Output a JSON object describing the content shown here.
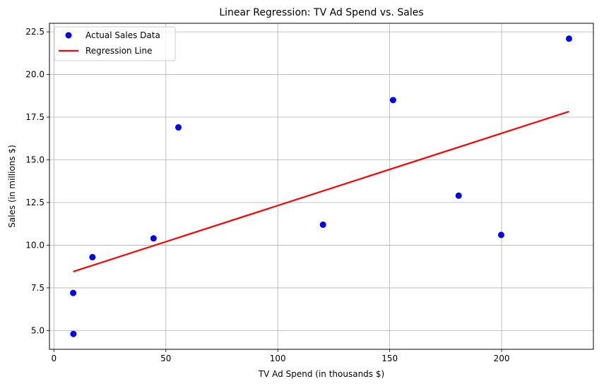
{
  "chart_data": {
    "type": "scatter",
    "title": "Linear Regression: TV Ad Spend vs. Sales",
    "xlabel": "TV Ad Spend (in thousands $)",
    "ylabel": "Sales (in millions $)",
    "xlim": [
      -2,
      241
    ],
    "ylim": [
      3.9,
      23.0
    ],
    "xticks": [
      0,
      50,
      100,
      150,
      200
    ],
    "yticks": [
      5.0,
      7.5,
      10.0,
      12.5,
      15.0,
      17.5,
      20.0,
      22.5
    ],
    "ytick_labels": [
      "5.0",
      "7.5",
      "10.0",
      "12.5",
      "15.0",
      "17.5",
      "20.0",
      "22.5"
    ],
    "grid": true,
    "legend_position": "top-left",
    "series": [
      {
        "name": "Actual Sales Data",
        "kind": "scatter",
        "color": "#0000ff",
        "x": [
          8.6,
          8.7,
          17.2,
          44.5,
          55.6,
          120.2,
          151.5,
          180.8,
          199.8,
          230.1
        ],
        "y": [
          7.2,
          4.8,
          9.3,
          10.4,
          16.9,
          11.2,
          18.5,
          12.9,
          10.6,
          22.1
        ]
      },
      {
        "name": "Regression Line",
        "kind": "line",
        "color": "#ff0000",
        "x": [
          8.6,
          230.1
        ],
        "y": [
          8.45,
          17.83
        ]
      }
    ]
  }
}
